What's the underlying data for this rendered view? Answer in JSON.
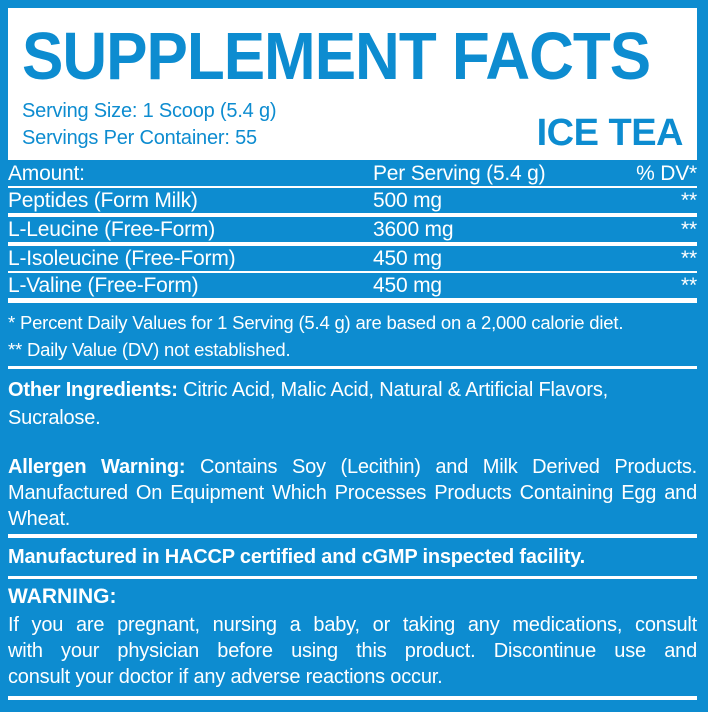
{
  "colors": {
    "background_blue": "#0d8cd0",
    "text_white": "#ffffff",
    "header_box_white": "#ffffff",
    "header_text_blue": "#0d8cd0"
  },
  "header": {
    "title": "SUPPLEMENT FACTS",
    "serving_size": "Serving Size: 1 Scoop (5.4 g)",
    "servings_per_container": "Servings Per Container: 55",
    "flavor": "ICE TEA"
  },
  "table": {
    "columns": [
      "Amount:",
      "Per Serving (5.4 g)",
      "% DV*"
    ],
    "rows": [
      {
        "name": "Peptides (Form Milk)",
        "amount": "500 mg",
        "dv": "**"
      },
      {
        "name": "L-Leucine (Free-Form)",
        "amount": "3600 mg",
        "dv": "**"
      },
      {
        "name": "L-Isoleucine (Free-Form)",
        "amount": "450 mg",
        "dv": "**"
      },
      {
        "name": "L-Valine (Free-Form)",
        "amount": "450 mg",
        "dv": "**"
      }
    ]
  },
  "footnotes": {
    "daily_value": "* Percent Daily Values for 1 Serving (5.4 g) are based on a 2,000 calorie diet.",
    "not_established": "** Daily Value (DV) not established."
  },
  "other_ingredients": {
    "label": "Other Ingredients:",
    "line1_rest": " Citric Acid, Malic Acid, Natural & Artificial Flavors,",
    "line2": "Sucralose."
  },
  "allergen": {
    "label": "Allergen Warning:",
    "line1_rest": " Contains Soy (Lecithin) and Milk Derived Products.",
    "line2": "Manufactured On Equipment Which Processes Products Containing Egg and",
    "line3": "Wheat."
  },
  "manufacturing": "Manufactured in HACCP certified and cGMP inspected facility.",
  "warning": {
    "label": "WARNING:",
    "line1": "If you are pregnant, nursing a baby, or taking any medications, consult",
    "line2": "with your physician before using this product. Discontinue use and",
    "line3": "consult your doctor if any adverse reactions occur."
  }
}
